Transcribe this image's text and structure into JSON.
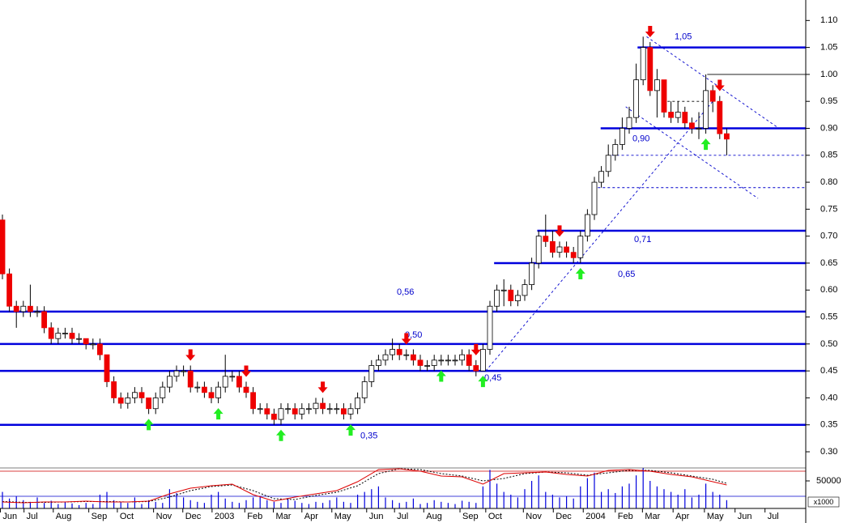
{
  "chart_data": {
    "type": "candlestick",
    "candle_up_color": "#ffffff",
    "candle_down_color": "#ee0000",
    "xlim": [
      -0.35,
      115.35
    ],
    "ylim": [
      0.27,
      1.12
    ],
    "yticks": [
      {
        "value": 0.3,
        "label": "0.30"
      },
      0.35,
      {
        "value": 0.4,
        "label": "0.40"
      },
      0.45,
      {
        "value": 0.5,
        "label": "0.50"
      },
      0.55,
      {
        "value": 0.6,
        "label": "0.60"
      },
      0.65,
      {
        "value": 0.7,
        "label": "0.70"
      },
      0.75,
      {
        "value": 0.8,
        "label": "0.80"
      },
      0.85,
      {
        "value": 0.9,
        "label": "0.90"
      },
      0.95,
      {
        "value": 1.0,
        "label": "1.00"
      },
      1.05,
      {
        "value": 1.1,
        "label": "1.10"
      }
    ],
    "xticks": [
      {
        "value": -0.3,
        "label": "Jun"
      },
      {
        "value": 3.1,
        "label": "Jul"
      },
      {
        "value": 7.3,
        "label": "Aug"
      },
      {
        "value": 12.4,
        "label": "Sep"
      },
      {
        "value": 16.5,
        "label": "Oct"
      },
      {
        "value": 21.7,
        "label": "Nov"
      },
      {
        "value": 25.9,
        "label": "Dec"
      },
      {
        "value": 30.1,
        "label": "2003"
      },
      {
        "value": 34.8,
        "label": "Feb"
      },
      {
        "value": 38.9,
        "label": "Mar"
      },
      {
        "value": 43.0,
        "label": "Apr"
      },
      {
        "value": 47.3,
        "label": "May"
      },
      {
        "value": 52.3,
        "label": "Jun"
      },
      {
        "value": 56.3,
        "label": "Jul"
      },
      {
        "value": 60.5,
        "label": "Aug"
      },
      {
        "value": 65.7,
        "label": "Sep"
      },
      {
        "value": 69.4,
        "label": "Oct"
      },
      {
        "value": 74.8,
        "label": "Nov"
      },
      {
        "value": 79.1,
        "label": "Dec"
      },
      {
        "value": 83.4,
        "label": "2004"
      },
      {
        "value": 88.0,
        "label": "Feb"
      },
      {
        "value": 91.9,
        "label": "Mar"
      },
      {
        "value": 96.3,
        "label": "Apr"
      },
      {
        "value": 100.8,
        "label": "May"
      },
      {
        "value": 105.2,
        "label": "Jun"
      },
      {
        "value": 109.5,
        "label": "Jul"
      }
    ],
    "ohlc": [
      [
        0.73,
        0.74,
        0.62,
        0.63
      ],
      [
        0.63,
        0.64,
        0.56,
        0.57
      ],
      [
        0.57,
        0.58,
        0.53,
        0.56
      ],
      [
        0.56,
        0.58,
        0.55,
        0.57
      ],
      [
        0.57,
        0.61,
        0.55,
        0.56
      ],
      [
        0.56,
        0.57,
        0.55,
        0.56
      ],
      [
        0.56,
        0.57,
        0.52,
        0.53
      ],
      [
        0.53,
        0.54,
        0.5,
        0.51
      ],
      [
        0.51,
        0.53,
        0.5,
        0.52
      ],
      [
        0.52,
        0.53,
        0.51,
        0.52
      ],
      [
        0.52,
        0.53,
        0.5,
        0.51
      ],
      [
        0.51,
        0.52,
        0.5,
        0.51
      ],
      [
        0.51,
        0.51,
        0.49,
        0.5
      ],
      [
        0.5,
        0.51,
        0.49,
        0.5
      ],
      [
        0.5,
        0.51,
        0.47,
        0.48
      ],
      [
        0.48,
        0.48,
        0.42,
        0.43
      ],
      [
        0.43,
        0.44,
        0.39,
        0.4
      ],
      [
        0.4,
        0.41,
        0.38,
        0.39
      ],
      [
        0.39,
        0.41,
        0.38,
        0.4
      ],
      [
        0.4,
        0.42,
        0.39,
        0.41
      ],
      [
        0.41,
        0.42,
        0.39,
        0.4
      ],
      [
        0.4,
        0.4,
        0.37,
        0.38
      ],
      [
        0.38,
        0.41,
        0.37,
        0.4
      ],
      [
        0.4,
        0.43,
        0.39,
        0.42
      ],
      [
        0.42,
        0.45,
        0.41,
        0.44
      ],
      [
        0.44,
        0.46,
        0.43,
        0.45
      ],
      [
        0.45,
        0.46,
        0.44,
        0.45
      ],
      [
        0.45,
        0.46,
        0.41,
        0.42
      ],
      [
        0.42,
        0.43,
        0.41,
        0.42
      ],
      [
        0.42,
        0.43,
        0.4,
        0.41
      ],
      [
        0.41,
        0.42,
        0.39,
        0.4
      ],
      [
        0.4,
        0.43,
        0.39,
        0.42
      ],
      [
        0.42,
        0.48,
        0.41,
        0.44
      ],
      [
        0.44,
        0.45,
        0.43,
        0.44
      ],
      [
        0.44,
        0.45,
        0.41,
        0.42
      ],
      [
        0.42,
        0.43,
        0.4,
        0.41
      ],
      [
        0.41,
        0.42,
        0.37,
        0.38
      ],
      [
        0.38,
        0.39,
        0.37,
        0.38
      ],
      [
        0.38,
        0.39,
        0.36,
        0.37
      ],
      [
        0.37,
        0.38,
        0.35,
        0.36
      ],
      [
        0.36,
        0.39,
        0.35,
        0.38
      ],
      [
        0.38,
        0.39,
        0.37,
        0.38
      ],
      [
        0.38,
        0.39,
        0.36,
        0.37
      ],
      [
        0.37,
        0.39,
        0.36,
        0.38
      ],
      [
        0.38,
        0.39,
        0.37,
        0.38
      ],
      [
        0.38,
        0.4,
        0.37,
        0.39
      ],
      [
        0.39,
        0.4,
        0.37,
        0.38
      ],
      [
        0.38,
        0.39,
        0.37,
        0.38
      ],
      [
        0.38,
        0.39,
        0.37,
        0.38
      ],
      [
        0.38,
        0.39,
        0.36,
        0.37
      ],
      [
        0.37,
        0.39,
        0.36,
        0.38
      ],
      [
        0.38,
        0.41,
        0.37,
        0.4
      ],
      [
        0.4,
        0.44,
        0.39,
        0.43
      ],
      [
        0.43,
        0.47,
        0.42,
        0.46
      ],
      [
        0.46,
        0.48,
        0.45,
        0.47
      ],
      [
        0.47,
        0.49,
        0.46,
        0.48
      ],
      [
        0.48,
        0.51,
        0.47,
        0.49
      ],
      [
        0.49,
        0.5,
        0.47,
        0.48
      ],
      [
        0.48,
        0.49,
        0.47,
        0.48
      ],
      [
        0.48,
        0.49,
        0.46,
        0.47
      ],
      [
        0.47,
        0.48,
        0.45,
        0.46
      ],
      [
        0.46,
        0.47,
        0.45,
        0.46
      ],
      [
        0.46,
        0.48,
        0.45,
        0.47
      ],
      [
        0.47,
        0.48,
        0.46,
        0.47
      ],
      [
        0.47,
        0.48,
        0.46,
        0.47
      ],
      [
        0.47,
        0.48,
        0.46,
        0.47
      ],
      [
        0.47,
        0.49,
        0.46,
        0.48
      ],
      [
        0.48,
        0.49,
        0.45,
        0.46
      ],
      [
        0.46,
        0.47,
        0.44,
        0.45
      ],
      [
        0.45,
        0.5,
        0.45,
        0.49
      ],
      [
        0.49,
        0.58,
        0.48,
        0.57
      ],
      [
        0.57,
        0.61,
        0.56,
        0.6
      ],
      [
        0.6,
        0.62,
        0.57,
        0.6
      ],
      [
        0.6,
        0.61,
        0.57,
        0.58
      ],
      [
        0.58,
        0.6,
        0.57,
        0.59
      ],
      [
        0.59,
        0.62,
        0.58,
        0.61
      ],
      [
        0.61,
        0.66,
        0.6,
        0.65
      ],
      [
        0.65,
        0.71,
        0.64,
        0.7
      ],
      [
        0.7,
        0.74,
        0.68,
        0.69
      ],
      [
        0.69,
        0.71,
        0.66,
        0.67
      ],
      [
        0.67,
        0.69,
        0.66,
        0.68
      ],
      [
        0.68,
        0.69,
        0.66,
        0.67
      ],
      [
        0.67,
        0.68,
        0.65,
        0.66
      ],
      [
        0.66,
        0.71,
        0.65,
        0.7
      ],
      [
        0.7,
        0.75,
        0.69,
        0.74
      ],
      [
        0.74,
        0.81,
        0.73,
        0.8
      ],
      [
        0.8,
        0.83,
        0.79,
        0.82
      ],
      [
        0.82,
        0.87,
        0.81,
        0.85
      ],
      [
        0.85,
        0.88,
        0.84,
        0.87
      ],
      [
        0.87,
        0.92,
        0.86,
        0.9
      ],
      [
        0.9,
        0.94,
        0.89,
        0.92
      ],
      [
        0.92,
        1.02,
        0.91,
        0.99
      ],
      [
        0.99,
        1.07,
        0.98,
        1.05
      ],
      [
        1.05,
        1.06,
        0.96,
        0.97
      ],
      [
        0.97,
        1.01,
        0.92,
        0.99
      ],
      [
        0.99,
        0.99,
        0.92,
        0.93
      ],
      [
        0.93,
        0.95,
        0.91,
        0.92
      ],
      [
        0.92,
        0.95,
        0.91,
        0.93
      ],
      [
        0.93,
        0.94,
        0.9,
        0.91
      ],
      [
        0.91,
        0.92,
        0.89,
        0.9
      ],
      [
        0.9,
        0.93,
        0.88,
        0.9
      ],
      [
        0.9,
        1.0,
        0.89,
        0.97
      ],
      [
        0.97,
        0.98,
        0.93,
        0.95
      ],
      [
        0.95,
        0.96,
        0.88,
        0.89
      ],
      [
        0.89,
        0.9,
        0.85,
        0.88
      ]
    ],
    "levels": [
      {
        "value": 0.35,
        "label": "0,35",
        "from": -0.35
      },
      {
        "value": 0.45,
        "label": "0,45",
        "from": -0.35
      },
      {
        "value": 0.5,
        "label": "0,50",
        "from": -0.35
      },
      {
        "value": 0.56,
        "label": "0,56",
        "from": -0.35
      },
      {
        "value": 0.65,
        "label": "0,65",
        "from": 70.6
      },
      {
        "value": 0.71,
        "label": "0,71",
        "from": 76.8
      },
      {
        "value": 0.9,
        "label": "0,90",
        "from": 85.9
      },
      {
        "value": 1.05,
        "label": "1,05",
        "from": 91.2
      }
    ],
    "level_color": "#0000dd",
    "trendlines": [
      {
        "points": [
          [
            69.4,
            0.45
          ],
          [
            102,
            0.95
          ]
        ],
        "color": "#0000cc",
        "dashed": true
      },
      {
        "points": [
          [
            92.5,
            1.07
          ],
          [
            111.5,
            0.9
          ]
        ],
        "color": "#0000cc",
        "dashed": true
      },
      {
        "points": [
          [
            89.5,
            0.94
          ],
          [
            108.5,
            0.77
          ]
        ],
        "color": "#0000cc",
        "dashed": true
      },
      {
        "points": [
          [
            87.5,
            0.85
          ],
          [
            115.35,
            0.85
          ]
        ],
        "color": "#0000cc",
        "dashed": true
      },
      {
        "points": [
          [
            85.5,
            0.79
          ],
          [
            115.35,
            0.79
          ]
        ],
        "color": "#0000cc",
        "dashed": true
      },
      {
        "points": [
          [
            95.5,
            0.95
          ],
          [
            101.5,
            0.95
          ]
        ],
        "color": "#000000",
        "dashed": true
      },
      {
        "points": [
          [
            101.2,
            1.0
          ],
          [
            115.35,
            1.0
          ]
        ],
        "color": "#000000",
        "dashed": false
      }
    ],
    "buy_signals": [
      21,
      31,
      40,
      50,
      63,
      69,
      83,
      101
    ],
    "buy_color": "#22ee22",
    "sell_signals": [
      27,
      35,
      46,
      58,
      68,
      80,
      93,
      103
    ],
    "sell_color": "#ee0000",
    "volume": [
      30000,
      18000,
      22000,
      15000,
      12000,
      20000,
      10000,
      14000,
      8000,
      12000,
      9000,
      6000,
      10000,
      8000,
      25000,
      30000,
      15000,
      12000,
      10000,
      20000,
      8000,
      15000,
      12000,
      10000,
      35000,
      28000,
      20000,
      15000,
      12000,
      10000,
      25000,
      30000,
      18000,
      12000,
      10000,
      15000,
      20000,
      22000,
      15000,
      12000,
      10000,
      18000,
      14000,
      10000,
      8000,
      12000,
      10000,
      15000,
      20000,
      12000,
      10000,
      25000,
      30000,
      35000,
      40000,
      20000,
      15000,
      10000,
      12000,
      18000,
      8000,
      10000,
      15000,
      12000,
      10000,
      8000,
      14000,
      12000,
      10000,
      40000,
      70000,
      45000,
      30000,
      25000,
      20000,
      35000,
      50000,
      60000,
      30000,
      25000,
      20000,
      22000,
      18000,
      40000,
      55000,
      65000,
      30000,
      35000,
      28000,
      40000,
      45000,
      60000,
      75000,
      50000,
      40000,
      35000,
      30000,
      25000,
      35000,
      20000,
      25000,
      45000,
      30000,
      25000,
      15000
    ],
    "volume_color": "#0000dd",
    "volume_lim": [
      0,
      73500
    ],
    "volume_ticks": [
      50000
    ],
    "volume_unit": "x1000",
    "oscillator": {
      "x": [
        0,
        3,
        6,
        9,
        12,
        15,
        18,
        21,
        24,
        27,
        30,
        33,
        36,
        39,
        42,
        45,
        48,
        51,
        54,
        57,
        60,
        63,
        66,
        69,
        72,
        75,
        78,
        81,
        84,
        87,
        90,
        93,
        96,
        99,
        102,
        104
      ],
      "fast": [
        16,
        14,
        16,
        16,
        18,
        16,
        16,
        18,
        36,
        50,
        56,
        60,
        34,
        18,
        28,
        36,
        44,
        66,
        96,
        98,
        92,
        80,
        78,
        60,
        86,
        88,
        90,
        84,
        80,
        94,
        96,
        92,
        84,
        78,
        66,
        58
      ],
      "slow": [
        17,
        15,
        15,
        16,
        17,
        17,
        16,
        17,
        28,
        44,
        54,
        58,
        44,
        24,
        22,
        32,
        40,
        56,
        86,
        98,
        96,
        86,
        80,
        68,
        74,
        86,
        90,
        88,
        82,
        88,
        94,
        94,
        88,
        80,
        72,
        62
      ],
      "fast_color": "#dd0000",
      "slow_color": "#000000",
      "lim": [
        0,
        100
      ],
      "levels": [
        92,
        30
      ],
      "level_colors": [
        "#cc0000",
        "#0000cc"
      ]
    }
  }
}
